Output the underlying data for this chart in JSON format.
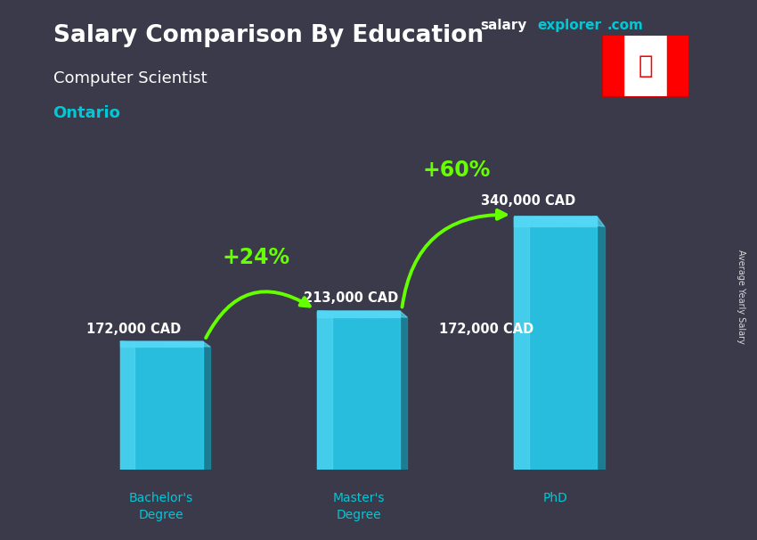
{
  "title": "Salary Comparison By Education",
  "subtitle": "Computer Scientist",
  "location": "Ontario",
  "categories": [
    "Bachelor's\nDegree",
    "Master's\nDegree",
    "PhD"
  ],
  "values": [
    172000,
    213000,
    340000
  ],
  "value_labels": [
    "172,000 CAD",
    "213,000 CAD",
    "340,000 CAD"
  ],
  "bar_color_main": "#29c5e6",
  "bar_color_light": "#55d8f5",
  "bar_color_dark": "#1a9db8",
  "bar_color_side": "#1888a0",
  "bg_color": "#3a3a4a",
  "text_color_white": "#ffffff",
  "text_color_cyan": "#00c8d7",
  "text_color_green": "#66ff00",
  "pct_labels": [
    "+24%",
    "+60%"
  ],
  "brand_salary": "salary",
  "brand_explorer": "explorer",
  "brand_dot_com": ".com",
  "ylabel_rotated": "Average Yearly Salary",
  "ylim": [
    0,
    420000
  ],
  "bar_positions": [
    0,
    1,
    2
  ],
  "bar_width": 0.42
}
